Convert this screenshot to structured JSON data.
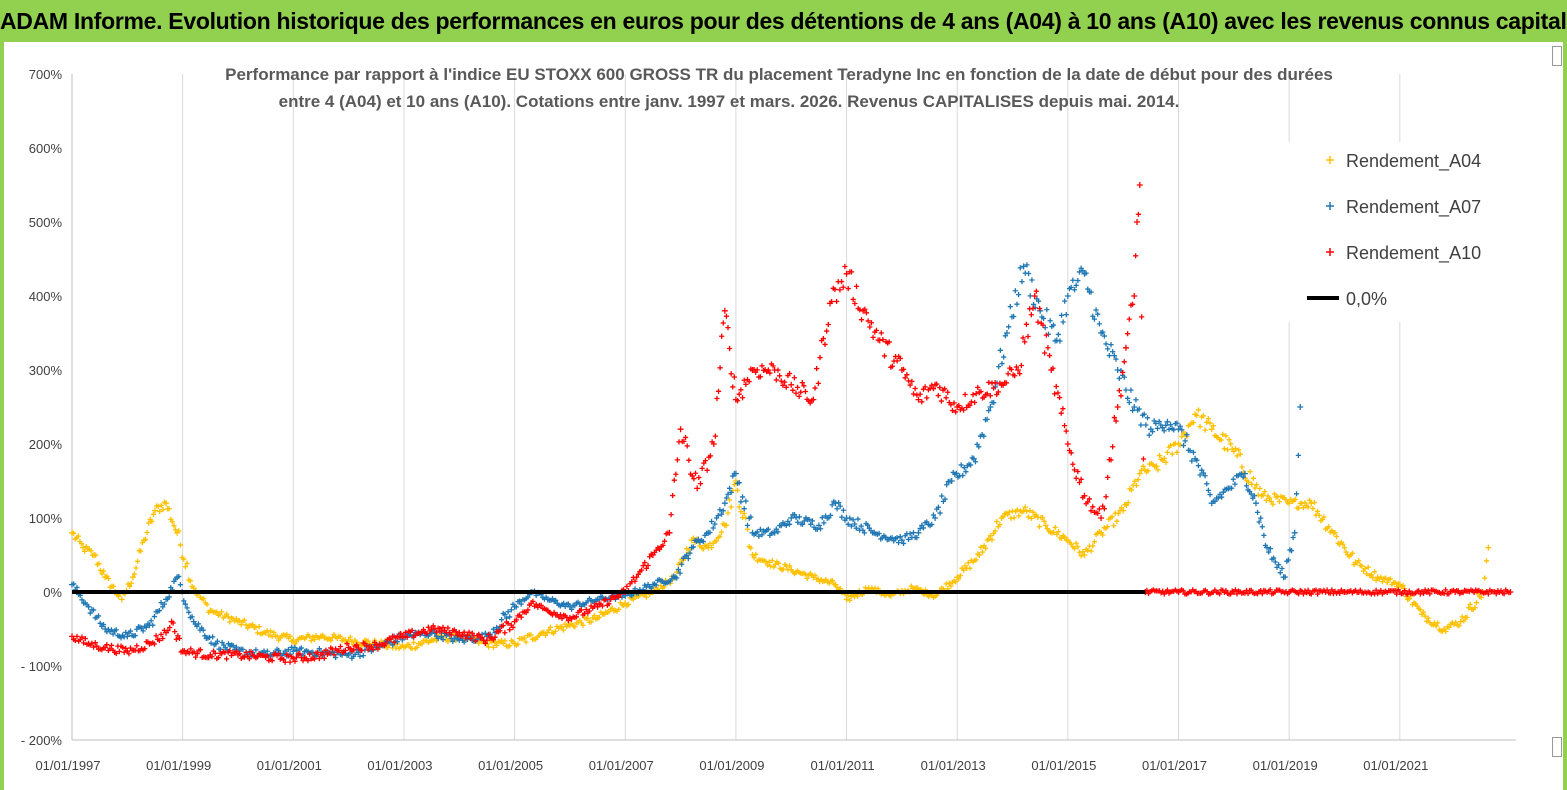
{
  "header": {
    "title": "ADAM Informe. Evolution historique des performances en euros pour des détentions de 4 ans (A04) à 10 ans (A10) avec les revenus connus capitalisés"
  },
  "chart_data": {
    "type": "scatter",
    "title_line1": "Performance par rapport à l'indice EU STOXX 600 GROSS TR  du placement Teradyne Inc en fonction de la date de début pour des durées",
    "title_line2": "entre 4 (A04) et 10 ans (A10). Cotations entre janv. 1997 et mars. 2026. Revenus CAPITALISES depuis mai. 2014.",
    "xlabel": "",
    "ylabel": "",
    "xlim": [
      1997.0,
      2023.1
    ],
    "ylim": [
      -200,
      700
    ],
    "y_ticks": [
      700,
      600,
      500,
      400,
      300,
      200,
      100,
      0,
      -100,
      -200
    ],
    "y_tick_labels": [
      "700%",
      "600%",
      "500%",
      "400%",
      "300%",
      "200%",
      "100%",
      "0%",
      "- 100%",
      "- 200%"
    ],
    "x_ticks": [
      1997,
      1999,
      2001,
      2003,
      2005,
      2007,
      2009,
      2011,
      2013,
      2015,
      2017,
      2019,
      2021
    ],
    "x_tick_labels": [
      "01/01/1997",
      "01/01/1999",
      "01/01/2001",
      "01/01/2003",
      "01/01/2005",
      "01/01/2007",
      "01/01/2009",
      "01/01/2011",
      "01/01/2013",
      "01/01/2015",
      "01/01/2017",
      "01/01/2019",
      "01/01/2021"
    ],
    "grid": "vertical",
    "legend_position": "top-right",
    "series": [
      {
        "name": "Rendement_A04",
        "color": "#ffc000",
        "marker": "plus",
        "x": [
          1997.0,
          1997.2,
          1997.4,
          1997.6,
          1997.9,
          1998.1,
          1998.3,
          1998.5,
          1998.7,
          1998.9,
          1999.2,
          1999.5,
          2000.0,
          2000.5,
          2001.0,
          2001.5,
          2002.0,
          2002.5,
          2003.0,
          2003.5,
          2004.0,
          2004.5,
          2005.0,
          2005.5,
          2006.0,
          2006.5,
          2007.0,
          2007.5,
          2007.9,
          2008.2,
          2008.5,
          2008.8,
          2009.0,
          2009.3,
          2009.6,
          2010.0,
          2010.4,
          2010.8,
          2011.0,
          2011.4,
          2011.8,
          2012.2,
          2012.6,
          2013.0,
          2013.4,
          2013.8,
          2014.2,
          2014.6,
          2015.0,
          2015.3,
          2015.6,
          2016.0,
          2016.3,
          2016.6,
          2017.0,
          2017.3,
          2017.6,
          2018.0,
          2018.5,
          2019.0,
          2019.4,
          2019.8,
          2020.2,
          2020.6,
          2021.0,
          2021.4,
          2021.8,
          2022.1,
          2022.5,
          2022.6
        ],
        "values": [
          80,
          60,
          50,
          20,
          -10,
          20,
          70,
          110,
          120,
          80,
          5,
          -25,
          -40,
          -55,
          -65,
          -60,
          -65,
          -70,
          -75,
          -65,
          -60,
          -70,
          -70,
          -55,
          -45,
          -35,
          -15,
          0,
          20,
          70,
          60,
          90,
          150,
          50,
          40,
          30,
          20,
          10,
          -10,
          5,
          -5,
          5,
          -5,
          20,
          50,
          100,
          110,
          90,
          70,
          50,
          80,
          110,
          160,
          170,
          200,
          240,
          220,
          190,
          130,
          120,
          120,
          80,
          40,
          20,
          10,
          -30,
          -50,
          -40,
          0,
          60
        ]
      },
      {
        "name": "Rendement_A07",
        "color": "#1f77b4",
        "marker": "plus",
        "x": [
          1997.0,
          1997.3,
          1997.6,
          1998.0,
          1998.4,
          1998.7,
          1998.9,
          1999.2,
          1999.6,
          2000.0,
          2000.5,
          2001.0,
          2001.5,
          2002.0,
          2002.5,
          2003.0,
          2003.5,
          2004.0,
          2004.5,
          2005.0,
          2005.3,
          2005.6,
          2006.0,
          2006.5,
          2007.0,
          2007.5,
          2007.9,
          2008.2,
          2008.5,
          2008.8,
          2009.0,
          2009.3,
          2009.7,
          2010.0,
          2010.5,
          2010.8,
          2011.0,
          2011.5,
          2012.0,
          2012.3,
          2012.6,
          2012.9,
          2013.3,
          2013.6,
          2013.9,
          2014.2,
          2014.5,
          2014.8,
          2015.0,
          2015.3,
          2015.6,
          2015.9,
          2016.2,
          2016.5,
          2016.8,
          2017.0,
          2017.3,
          2017.6,
          2017.9,
          2018.2,
          2018.4,
          2018.6,
          2018.9,
          2019.1,
          2019.2
        ],
        "values": [
          10,
          -20,
          -50,
          -60,
          -45,
          -10,
          20,
          -40,
          -70,
          -80,
          -85,
          -80,
          -82,
          -85,
          -75,
          -60,
          -55,
          -65,
          -60,
          -20,
          0,
          -10,
          -20,
          -10,
          -5,
          10,
          20,
          60,
          80,
          120,
          160,
          80,
          80,
          100,
          90,
          120,
          100,
          80,
          70,
          80,
          100,
          150,
          180,
          250,
          350,
          440,
          380,
          340,
          400,
          430,
          350,
          300,
          250,
          220,
          230,
          220,
          180,
          120,
          140,
          160,
          120,
          60,
          20,
          80,
          250
        ]
      },
      {
        "name": "Rendement_A10",
        "color": "#ff0000",
        "marker": "plus",
        "x": [
          1997.0,
          1997.3,
          1997.6,
          1998.0,
          1998.4,
          1998.7,
          1998.8,
          1999.0,
          1999.5,
          2000.0,
          2000.5,
          2001.0,
          2001.5,
          2002.0,
          2002.5,
          2003.0,
          2003.5,
          2004.0,
          2004.5,
          2005.0,
          2005.3,
          2005.6,
          2006.0,
          2006.5,
          2007.0,
          2007.5,
          2007.8,
          2008.0,
          2008.3,
          2008.6,
          2008.8,
          2009.0,
          2009.3,
          2009.7,
          2010.0,
          2010.4,
          2010.7,
          2011.0,
          2011.3,
          2011.6,
          2012.0,
          2012.3,
          2012.6,
          2013.0,
          2013.4,
          2013.8,
          2014.1,
          2014.4,
          2014.7,
          2015.0,
          2015.3,
          2015.6,
          2015.9,
          2016.05,
          2016.2,
          2016.25,
          2016.3,
          2016.4,
          2017.0,
          2018.0,
          2019.0,
          2020.0,
          2021.0,
          2022.0,
          2023.0
        ],
        "values": [
          -60,
          -70,
          -75,
          -80,
          -70,
          -55,
          -40,
          -80,
          -85,
          -85,
          -88,
          -90,
          -85,
          -75,
          -72,
          -60,
          -50,
          -55,
          -65,
          -40,
          -15,
          -25,
          -35,
          -20,
          0,
          50,
          80,
          220,
          140,
          200,
          380,
          260,
          300,
          300,
          280,
          260,
          390,
          430,
          380,
          340,
          300,
          260,
          280,
          250,
          270,
          280,
          300,
          400,
          300,
          200,
          130,
          100,
          250,
          330,
          400,
          500,
          550,
          0,
          0,
          0,
          0,
          0,
          0,
          0,
          0
        ]
      },
      {
        "name": "0,0%",
        "color": "#000000",
        "marker": "line",
        "x": [
          1997.0,
          2016.4
        ],
        "values": [
          0,
          0
        ]
      }
    ]
  }
}
